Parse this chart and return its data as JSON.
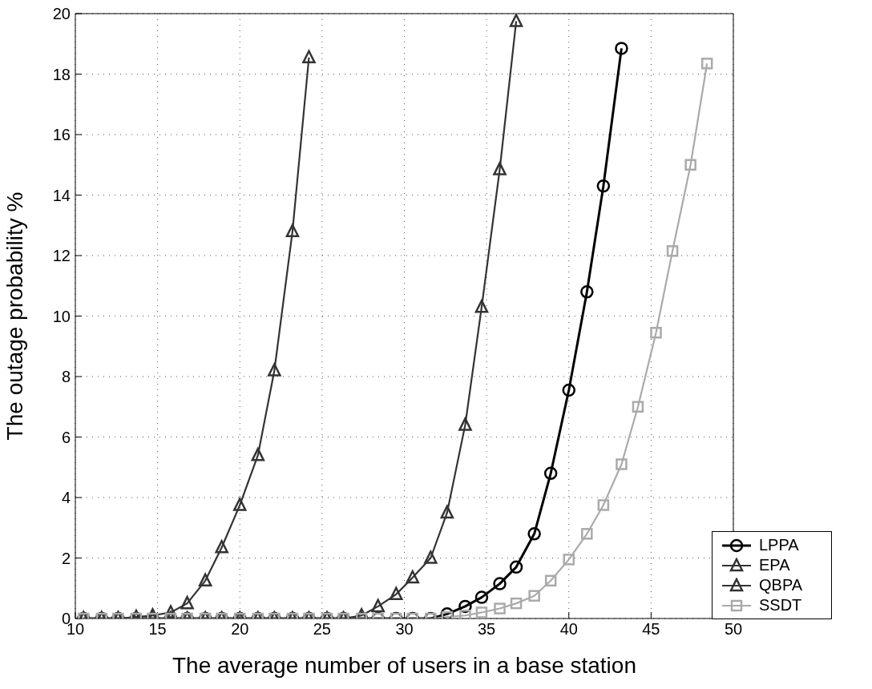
{
  "chart_data": {
    "type": "line",
    "xlabel": "The average number of users in a base station",
    "ylabel": "The outage probability %",
    "xlim": [
      10,
      50
    ],
    "xticks": [
      10,
      15,
      20,
      25,
      30,
      35,
      40,
      45,
      50
    ],
    "ylim": [
      0,
      20
    ],
    "yticks": [
      0,
      2,
      4,
      6,
      8,
      10,
      12,
      14,
      16,
      18,
      20
    ],
    "grid": true,
    "legend": "bottom right",
    "line_style": "solid",
    "x": [
      10.5,
      11.6,
      12.6,
      13.7,
      14.7,
      15.8,
      16.8,
      17.9,
      18.9,
      20,
      21.1,
      22.1,
      23.2,
      24.2,
      25.3,
      26.3,
      27.4,
      28.4,
      29.5,
      30.5,
      31.6,
      32.6,
      33.7,
      34.7,
      35.8,
      36.8,
      37.9,
      38.9,
      40,
      41.1,
      42.1,
      43.2,
      44.2,
      45.3,
      46.3,
      47.4,
      48.4
    ],
    "series": [
      {
        "name": "LPPA",
        "color": "#000000",
        "marker": "circle",
        "values": [
          0,
          0,
          0,
          0,
          0,
          0,
          0,
          0,
          0,
          0,
          0,
          0,
          0,
          0,
          0,
          0,
          0,
          0,
          0,
          0,
          0,
          0.15,
          0.4,
          0.7,
          1.15,
          1.7,
          2.8,
          4.8,
          7.55,
          10.8,
          14.3,
          18.85,
          null,
          null,
          null,
          null,
          null
        ]
      },
      {
        "name": "EPA",
        "color": "#333333",
        "marker": "triangle",
        "values": [
          0,
          0,
          0,
          0,
          0,
          0,
          0,
          0,
          0,
          0,
          0,
          0,
          0,
          0,
          0,
          0,
          0.1,
          0.4,
          0.8,
          1.35,
          2.0,
          3.5,
          6.4,
          10.3,
          14.85,
          19.75,
          null,
          null,
          null,
          null,
          null,
          null,
          null,
          null,
          null,
          null,
          null
        ]
      },
      {
        "name": "QBPA",
        "color": "#333333",
        "marker": "triangle",
        "values": [
          0,
          0,
          0,
          0.05,
          0.1,
          0.2,
          0.5,
          1.25,
          2.35,
          3.75,
          5.4,
          8.2,
          12.8,
          18.55,
          null,
          null,
          null,
          null,
          null,
          null,
          null,
          null,
          null,
          null,
          null,
          null,
          null,
          null,
          null,
          null,
          null,
          null,
          null,
          null,
          null,
          null,
          null
        ]
      },
      {
        "name": "SSDT",
        "color": "#aaaaaa",
        "marker": "square",
        "values": [
          0,
          0,
          0,
          0,
          0,
          0,
          0,
          0,
          0,
          0,
          0,
          0,
          0,
          0,
          0,
          0,
          0,
          0,
          0,
          0,
          0,
          0.05,
          0.1,
          0.2,
          0.33,
          0.5,
          0.75,
          1.25,
          1.95,
          2.8,
          3.75,
          5.1,
          7.0,
          9.45,
          12.15,
          15.0,
          18.35
        ]
      }
    ]
  }
}
